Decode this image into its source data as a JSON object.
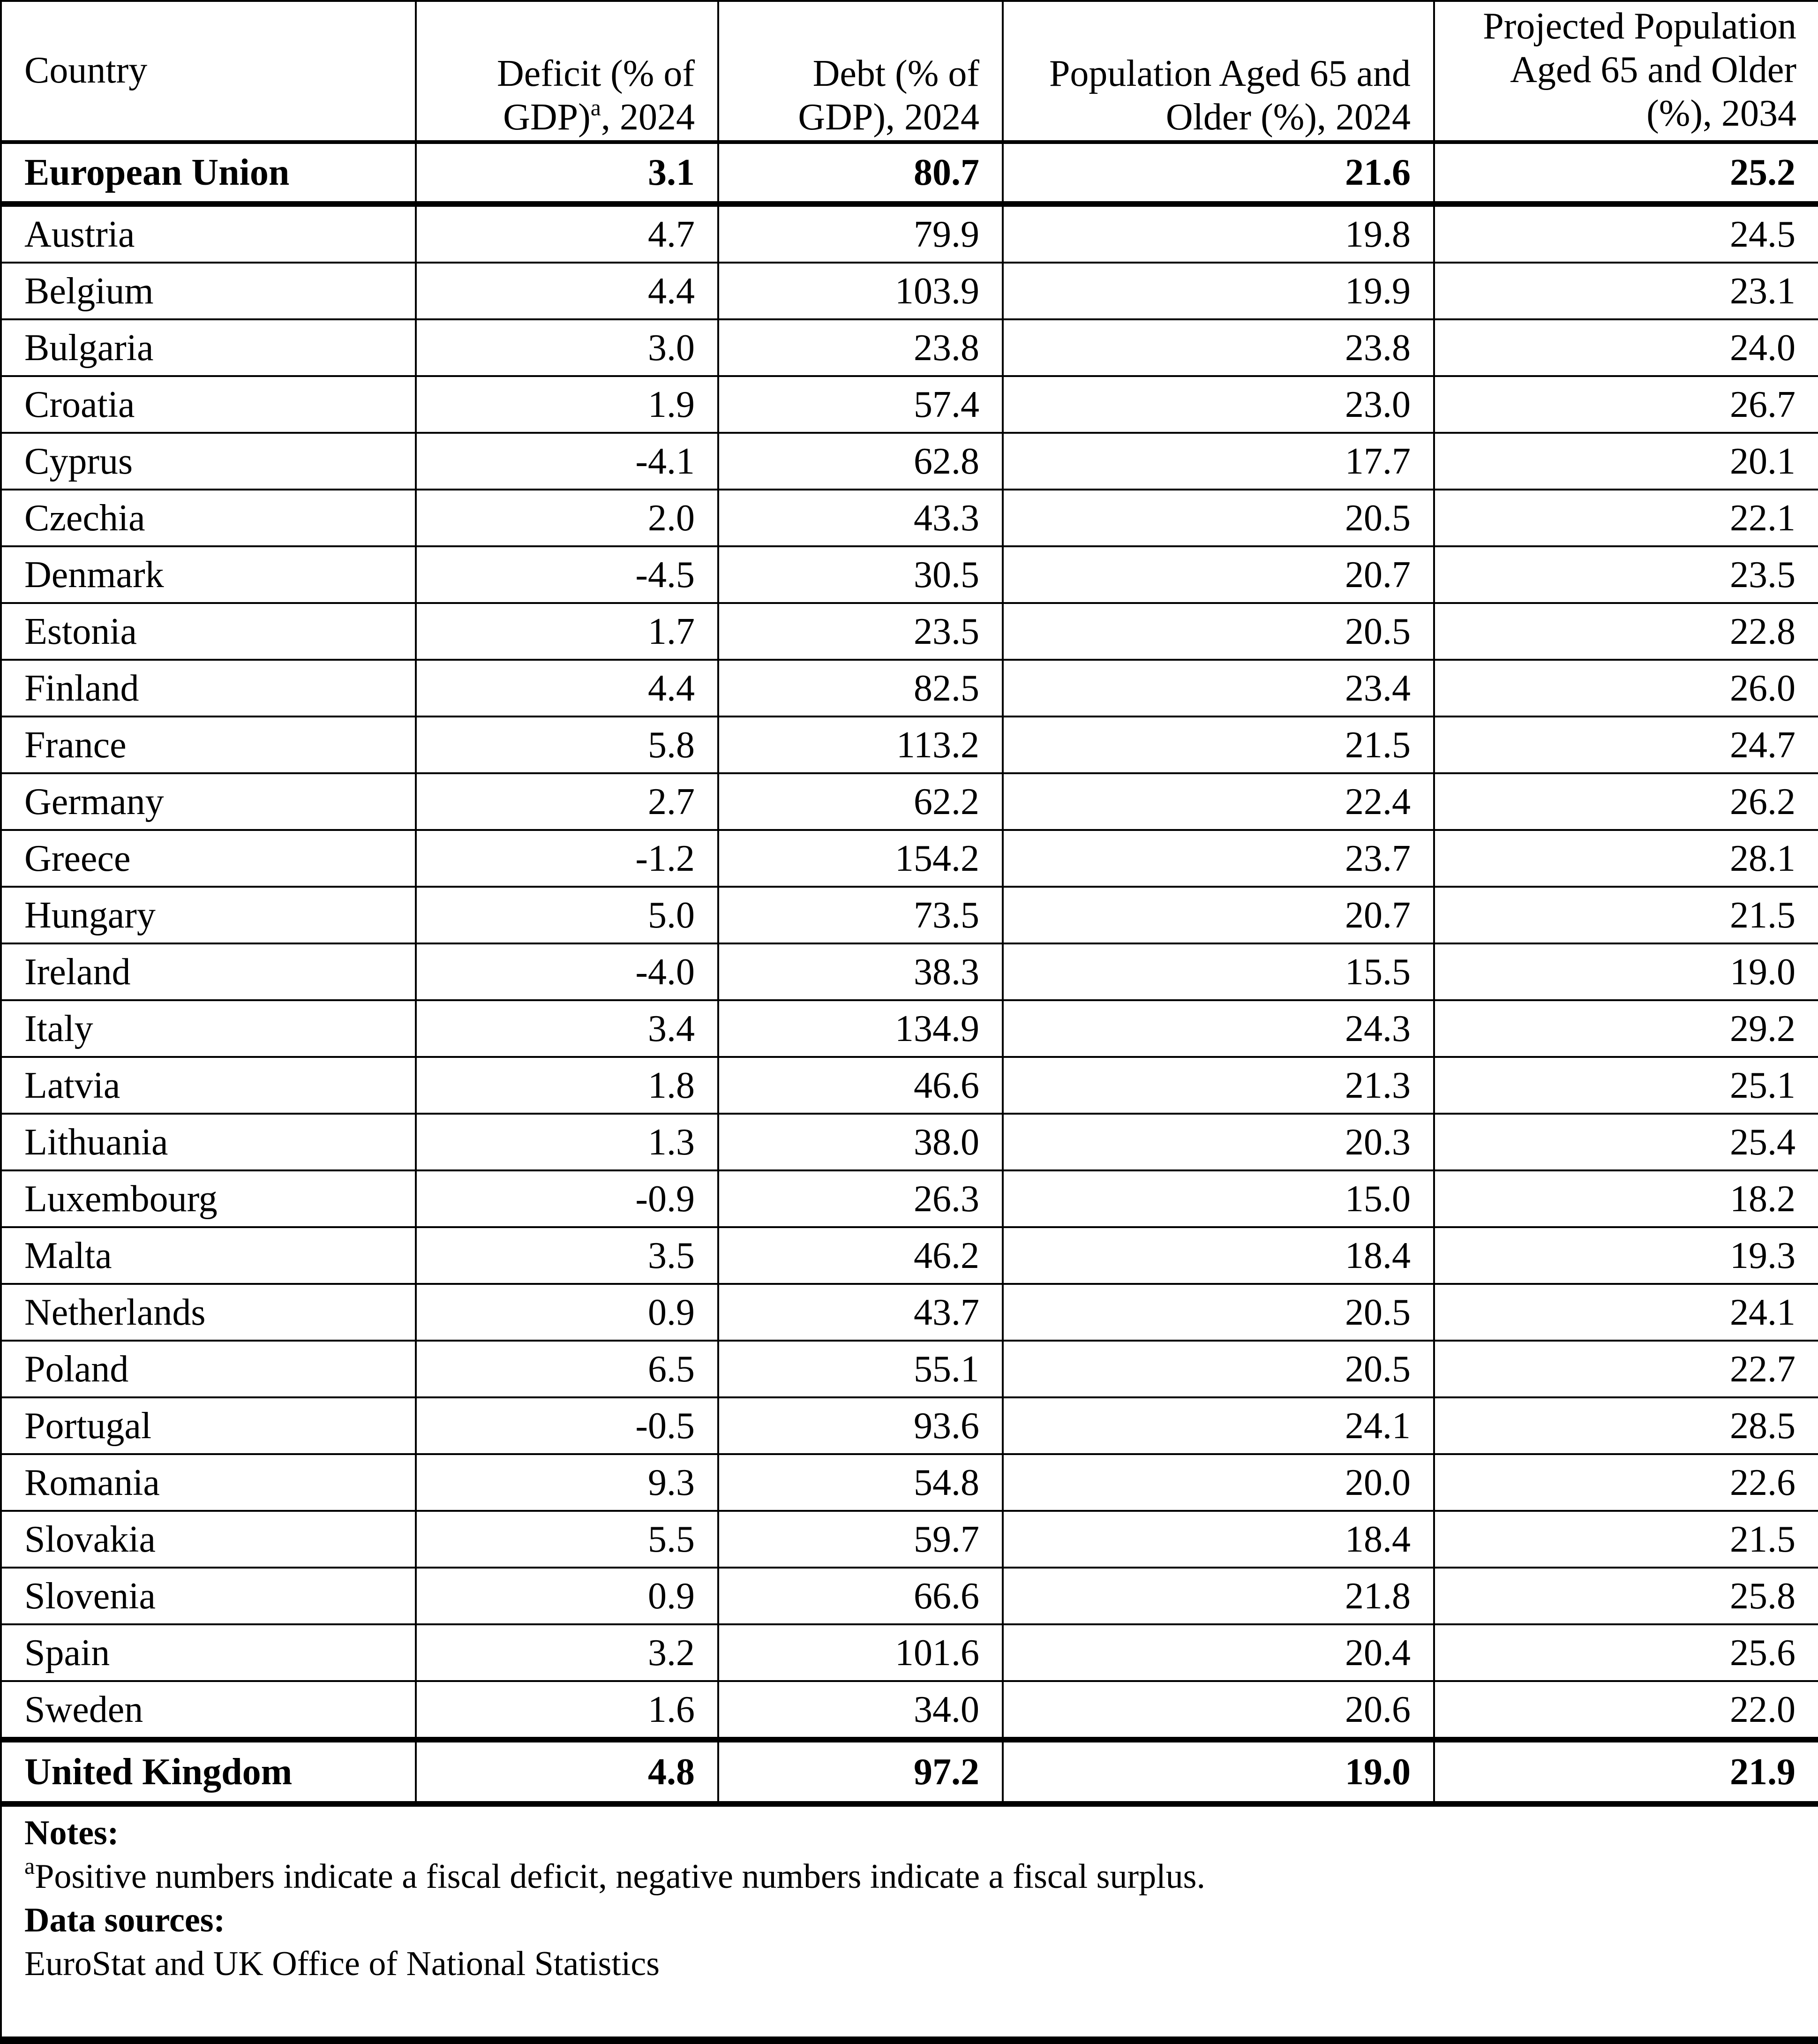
{
  "table": {
    "headers": [
      {
        "text": "Country"
      },
      {
        "text": "Deficit (% of GDP)",
        "sup": "a",
        "suffix": ", 2024"
      },
      {
        "text": "Debt (% of GDP), 2024"
      },
      {
        "text": "Population Aged 65 and Older (%), 2024"
      },
      {
        "text": "Projected Population Aged 65 and Older (%), 2034"
      }
    ],
    "eu_row": [
      "European Union",
      "3.1",
      "80.7",
      "21.6",
      "25.2"
    ],
    "rows": [
      [
        "Austria",
        "4.7",
        "79.9",
        "19.8",
        "24.5"
      ],
      [
        "Belgium",
        "4.4",
        "103.9",
        "19.9",
        "23.1"
      ],
      [
        "Bulgaria",
        "3.0",
        "23.8",
        "23.8",
        "24.0"
      ],
      [
        "Croatia",
        "1.9",
        "57.4",
        "23.0",
        "26.7"
      ],
      [
        "Cyprus",
        "-4.1",
        "62.8",
        "17.7",
        "20.1"
      ],
      [
        "Czechia",
        "2.0",
        "43.3",
        "20.5",
        "22.1"
      ],
      [
        "Denmark",
        "-4.5",
        "30.5",
        "20.7",
        "23.5"
      ],
      [
        "Estonia",
        "1.7",
        "23.5",
        "20.5",
        "22.8"
      ],
      [
        "Finland",
        "4.4",
        "82.5",
        "23.4",
        "26.0"
      ],
      [
        "France",
        "5.8",
        "113.2",
        "21.5",
        "24.7"
      ],
      [
        "Germany",
        "2.7",
        "62.2",
        "22.4",
        "26.2"
      ],
      [
        "Greece",
        "-1.2",
        "154.2",
        "23.7",
        "28.1"
      ],
      [
        "Hungary",
        "5.0",
        "73.5",
        "20.7",
        "21.5"
      ],
      [
        "Ireland",
        "-4.0",
        "38.3",
        "15.5",
        "19.0"
      ],
      [
        "Italy",
        "3.4",
        "134.9",
        "24.3",
        "29.2"
      ],
      [
        "Latvia",
        "1.8",
        "46.6",
        "21.3",
        "25.1"
      ],
      [
        "Lithuania",
        "1.3",
        "38.0",
        "20.3",
        "25.4"
      ],
      [
        "Luxembourg",
        "-0.9",
        "26.3",
        "15.0",
        "18.2"
      ],
      [
        "Malta",
        "3.5",
        "46.2",
        "18.4",
        "19.3"
      ],
      [
        "Netherlands",
        "0.9",
        "43.7",
        "20.5",
        "24.1"
      ],
      [
        "Poland",
        "6.5",
        "55.1",
        "20.5",
        "22.7"
      ],
      [
        "Portugal",
        "-0.5",
        "93.6",
        "24.1",
        "28.5"
      ],
      [
        "Romania",
        "9.3",
        "54.8",
        "20.0",
        "22.6"
      ],
      [
        "Slovakia",
        "5.5",
        "59.7",
        "18.4",
        "21.5"
      ],
      [
        "Slovenia",
        "0.9",
        "66.6",
        "21.8",
        "25.8"
      ],
      [
        "Spain",
        "3.2",
        "101.6",
        "20.4",
        "25.6"
      ],
      [
        "Sweden",
        "1.6",
        "34.0",
        "20.6",
        "22.0"
      ]
    ],
    "uk_row": [
      "United Kingdom",
      "4.8",
      "97.2",
      "19.0",
      "21.9"
    ]
  },
  "notes": {
    "notes_heading": "Notes:",
    "note_a_marker": "a",
    "note_a_text": "Positive numbers indicate a fiscal deficit, negative numbers indicate a fiscal surplus.",
    "sources_heading": "Data sources:",
    "sources_text": "EuroStat and UK Office of National Statistics"
  }
}
